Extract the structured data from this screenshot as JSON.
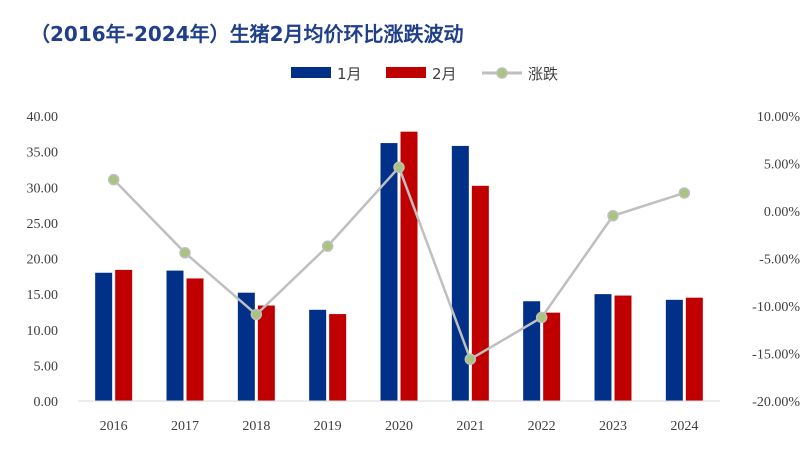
{
  "chart_data": {
    "type": "bar",
    "title": "（2016年-2024年）生猪2月均价环比涨跌波动",
    "categories": [
      "2016",
      "2017",
      "2018",
      "2019",
      "2020",
      "2021",
      "2022",
      "2023",
      "2024"
    ],
    "series": [
      {
        "name": "1月",
        "type": "bar",
        "axis": "left",
        "color": "#003087",
        "values": [
          18.0,
          18.3,
          15.2,
          12.8,
          36.2,
          35.8,
          14.0,
          15.0,
          14.2
        ]
      },
      {
        "name": "2月",
        "type": "bar",
        "axis": "left",
        "color": "#c00000",
        "values": [
          18.4,
          17.2,
          13.4,
          12.2,
          37.8,
          30.2,
          12.4,
          14.8,
          14.5
        ]
      },
      {
        "name": "涨跌",
        "type": "line",
        "axis": "right",
        "color": "#bfbfbf",
        "marker_color": "#a9c47f",
        "values": [
          3.3,
          -4.4,
          -10.9,
          -3.7,
          4.6,
          -15.6,
          -11.2,
          -0.5,
          1.9
        ]
      }
    ],
    "y_left": {
      "range": [
        0,
        40
      ],
      "ticks": [
        "0.00",
        "5.00",
        "10.00",
        "15.00",
        "20.00",
        "25.00",
        "30.00",
        "35.00",
        "40.00"
      ]
    },
    "y_right": {
      "range": [
        -20,
        10
      ],
      "ticks": [
        "-20.00%",
        "-15.00%",
        "-10.00%",
        "-5.00%",
        "0.00%",
        "5.00%",
        "10.00%"
      ]
    },
    "legend_position": "top-center",
    "grid": false
  }
}
